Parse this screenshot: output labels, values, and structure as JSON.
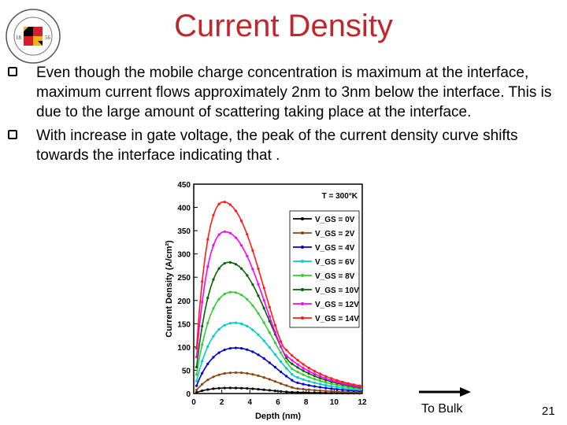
{
  "slide": {
    "title": "Current Density",
    "logo_text": "UNIVERSITY OF MARYLAND",
    "logo_year_left": "18",
    "logo_year_right": "56",
    "bullets": [
      "Even though the mobile charge concentration is maximum at the interface, maximum current flows approximately 2nm to 3nm below the interface. This is due to the large amount of scattering taking place at the interface.",
      "With increase in gate voltage, the peak of the current density curve shifts towards the interface indicating that ."
    ],
    "to_bulk_label": "To Bulk",
    "page_number": "21",
    "colors": {
      "title": "#c0272d"
    }
  },
  "chart_data": {
    "type": "line",
    "title": "",
    "xlabel": "Depth (nm)",
    "ylabel": "Current Density (A/cm²)",
    "annotation": "T = 300°K",
    "xlim": [
      0,
      12
    ],
    "ylim": [
      0,
      450
    ],
    "xticks": [
      0,
      2,
      4,
      6,
      8,
      10,
      12
    ],
    "yticks": [
      0,
      50,
      100,
      150,
      200,
      250,
      300,
      350,
      400,
      450
    ],
    "legend_position": "top-right",
    "series": [
      {
        "name": "V_GS = 0V",
        "color": "#000000",
        "peak_x": 2.6,
        "peak_y": 12
      },
      {
        "name": "V_GS = 2V",
        "color": "#8b4513",
        "peak_x": 3.0,
        "peak_y": 45
      },
      {
        "name": "V_GS = 4V",
        "color": "#0000cd",
        "peak_x": 3.0,
        "peak_y": 98
      },
      {
        "name": "V_GS = 6V",
        "color": "#00cccc",
        "peak_x": 2.9,
        "peak_y": 152
      },
      {
        "name": "V_GS = 8V",
        "color": "#33cc33",
        "peak_x": 2.7,
        "peak_y": 218
      },
      {
        "name": "V_GS = 10V",
        "color": "#006400",
        "peak_x": 2.5,
        "peak_y": 282
      },
      {
        "name": "V_GS = 12V",
        "color": "#ff00ff",
        "peak_x": 2.2,
        "peak_y": 348
      },
      {
        "name": "V_GS = 14V",
        "color": "#ff1a1a",
        "peak_x": 2.1,
        "peak_y": 412
      }
    ]
  }
}
